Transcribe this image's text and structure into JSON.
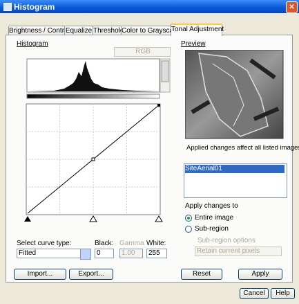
{
  "window": {
    "title": "Histogram"
  },
  "tabs": [
    "Brightness / Contrast",
    "Equalize",
    "Threshold",
    "Color to Grayscale",
    "Tonal Adjustment"
  ],
  "histogram": {
    "label": "Histogram",
    "channel": "RGB"
  },
  "curve": {
    "type_label": "Select curve type:",
    "type_value": "Fitted",
    "black_label": "Black:",
    "black_value": "0",
    "gamma_label": "Gamma",
    "gamma_value": "1.00",
    "white_label": "White:",
    "white_value": "255"
  },
  "preview": {
    "label": "Preview",
    "note": "Applied changes affect all listed images.",
    "images": [
      "SiteAerial01"
    ]
  },
  "apply_to": {
    "label": "Apply changes to",
    "options": [
      "Entire image",
      "Sub-region"
    ],
    "subregion_label": "Sub-region options",
    "subregion_value": "Retain current pixels"
  },
  "buttons": {
    "import": "Import...",
    "export": "Export...",
    "reset": "Reset",
    "apply": "Apply",
    "cancel": "Cancel",
    "help": "Help"
  }
}
